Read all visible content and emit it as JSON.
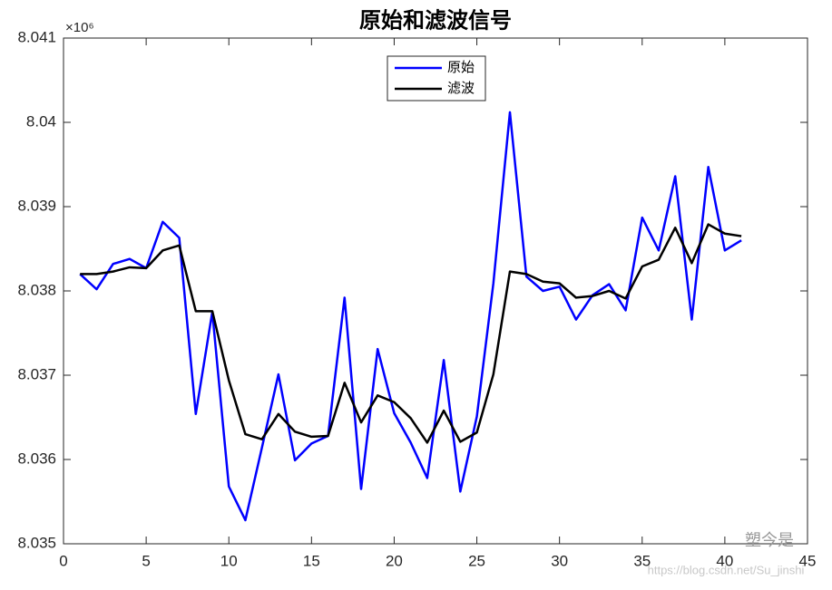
{
  "chart_data": {
    "type": "line",
    "title": "原始和滤波信号",
    "y_multiplier": "×10⁶",
    "x": [
      1,
      2,
      3,
      4,
      5,
      6,
      7,
      8,
      9,
      10,
      11,
      12,
      13,
      14,
      15,
      16,
      17,
      18,
      19,
      20,
      21,
      22,
      23,
      24,
      25,
      26,
      27,
      28,
      29,
      30,
      31,
      32,
      33,
      34,
      35,
      36,
      37,
      38,
      39,
      40,
      41
    ],
    "series": [
      {
        "name": "原始",
        "color": "#0000ff",
        "values": [
          8.0382,
          8.03802,
          8.03832,
          8.03838,
          8.03827,
          8.03882,
          8.03863,
          8.03654,
          8.03775,
          8.03568,
          8.03528,
          8.03614,
          8.03701,
          8.03599,
          8.03619,
          8.03628,
          8.03792,
          8.03565,
          8.03731,
          8.03655,
          8.0362,
          8.03578,
          8.03718,
          8.03562,
          8.03651,
          8.03809,
          8.04012,
          8.03817,
          8.038,
          8.03805,
          8.03766,
          8.03795,
          8.03808,
          8.03777,
          8.03887,
          8.03848,
          8.03936,
          8.03766,
          8.03947,
          8.03848,
          8.0386
        ]
      },
      {
        "name": "滤波",
        "color": "#000000",
        "values": [
          8.0382,
          8.0382,
          8.03823,
          8.03828,
          8.03827,
          8.03848,
          8.03854,
          8.03776,
          8.03776,
          8.03694,
          8.0363,
          8.03624,
          8.03654,
          8.03633,
          8.03627,
          8.03628,
          8.03691,
          8.03644,
          8.03676,
          8.03668,
          8.03649,
          8.0362,
          8.03658,
          8.03621,
          8.03632,
          8.03701,
          8.03823,
          8.0382,
          8.03811,
          8.03809,
          8.03792,
          8.03794,
          8.038,
          8.03791,
          8.03829,
          8.03837,
          8.03875,
          8.03833,
          8.03879,
          8.03868,
          8.03865
        ]
      }
    ],
    "xlim": [
      0,
      45
    ],
    "xticks": [
      0,
      5,
      10,
      15,
      20,
      25,
      30,
      35,
      40,
      45
    ],
    "ylim": [
      8.035,
      8.041
    ],
    "yticks": [
      8.035,
      8.036,
      8.037,
      8.038,
      8.039,
      8.04,
      8.041
    ],
    "grid": false,
    "legend": "top-center"
  },
  "watermark": {
    "brand": "塑今是",
    "url": "https://blog.csdn.net/Su_jinshi"
  }
}
